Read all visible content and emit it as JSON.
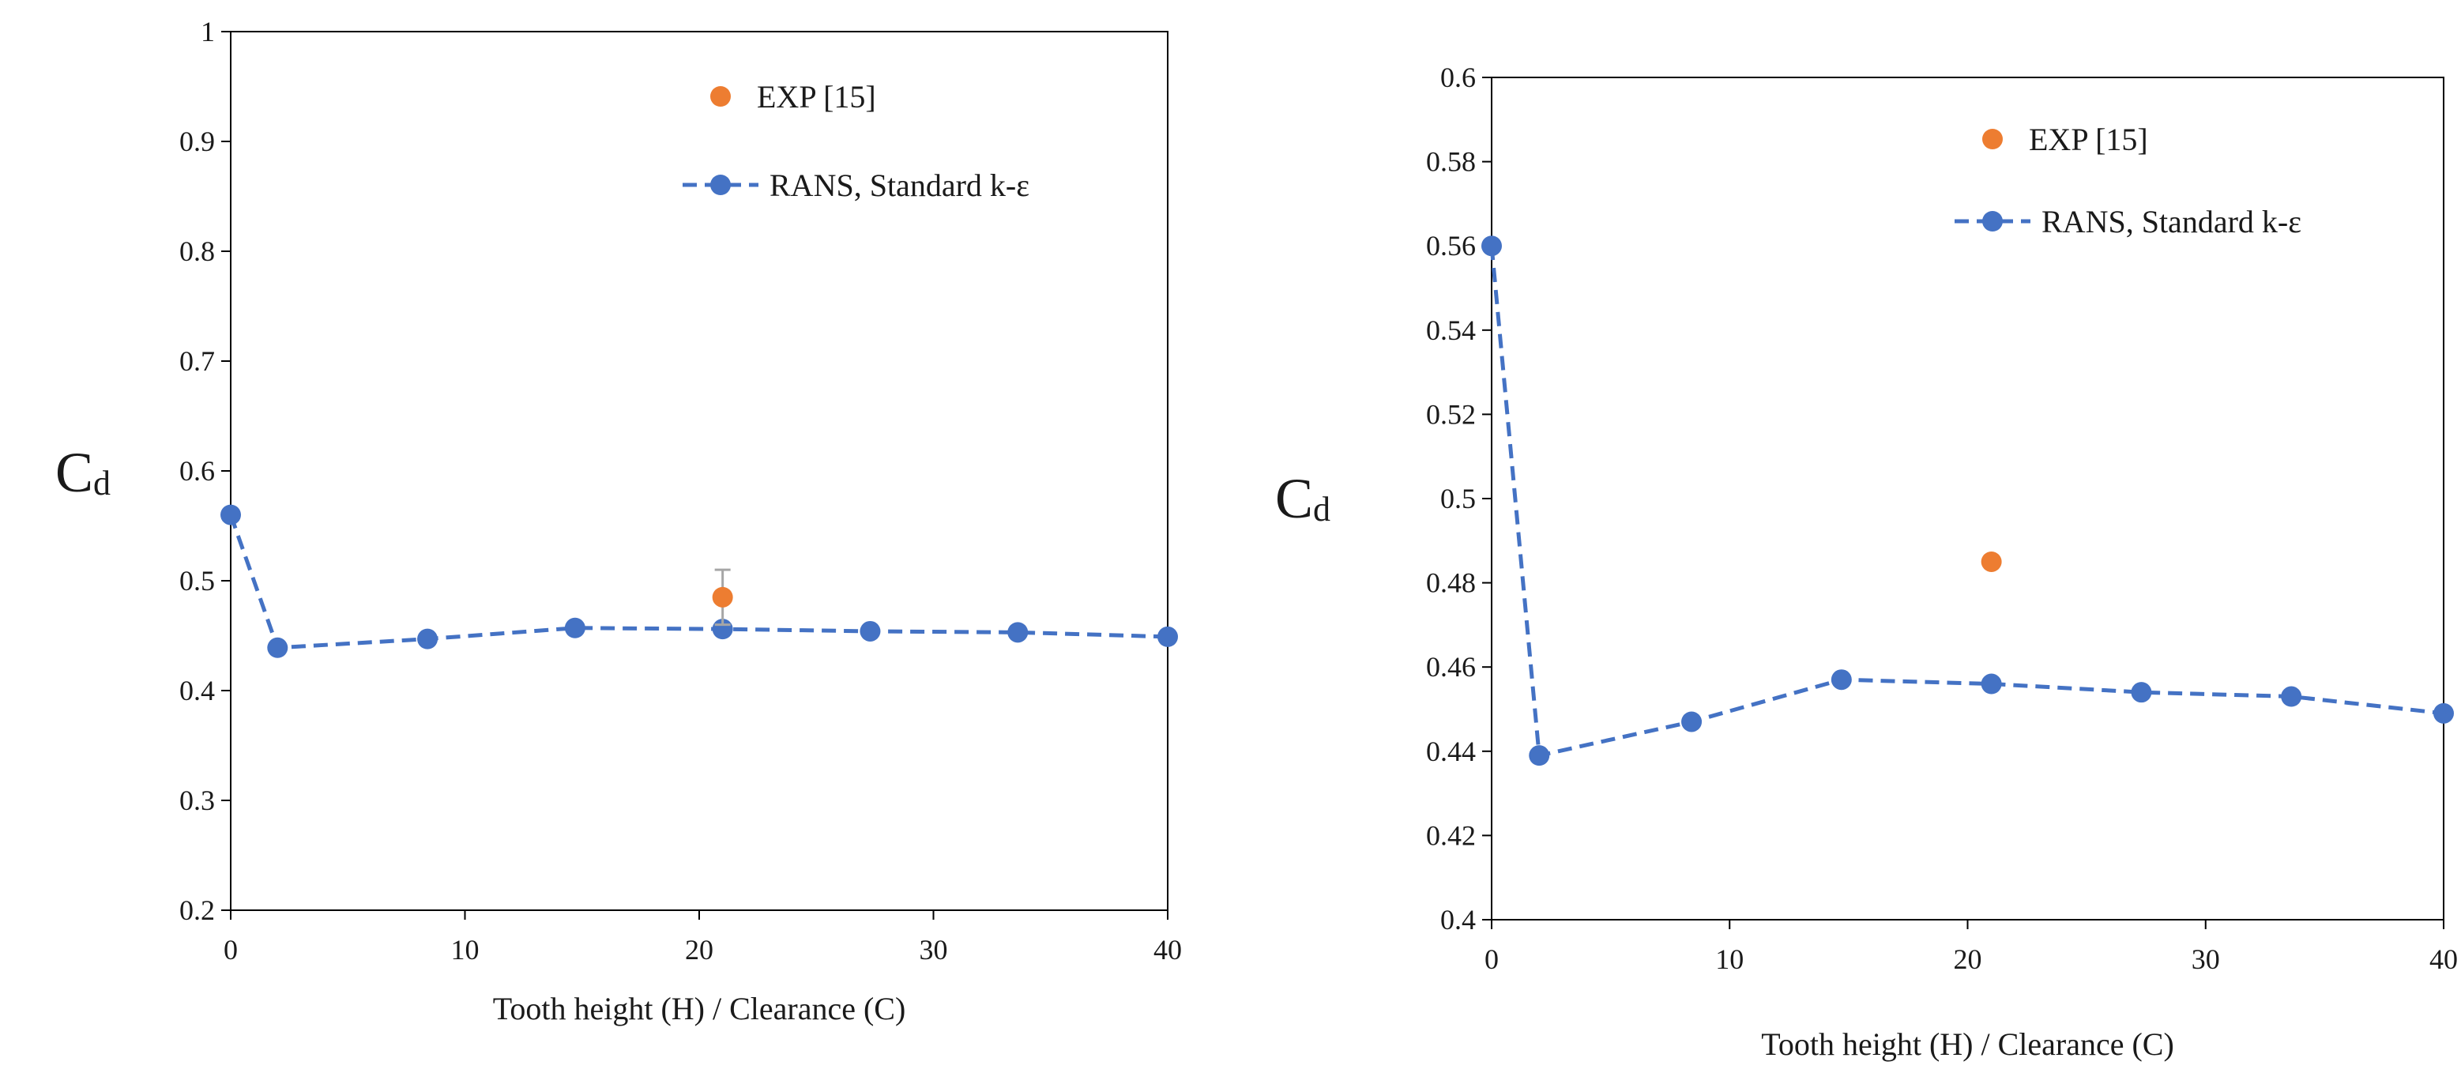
{
  "colors": {
    "rans": "#4472C4",
    "exp": "#ED7D31",
    "error_bar": "#A6A6A6",
    "axis": "#000000"
  },
  "chart_data": [
    {
      "type": "line",
      "xlabel": "Tooth height (H) / Clearance (C)",
      "ylabel": {
        "main": "C",
        "sub": "d"
      },
      "xlim": [
        0,
        40
      ],
      "ylim": [
        0.2,
        1.0
      ],
      "xticks": [
        "0",
        "10",
        "20",
        "30",
        "40"
      ],
      "yticks": [
        "0.2",
        "0.3",
        "0.4",
        "0.5",
        "0.6",
        "0.7",
        "0.8",
        "0.9",
        "1"
      ],
      "grid": false,
      "legend_position": "top-right",
      "series": [
        {
          "name": "EXP [15]",
          "style": "markers",
          "x": [
            21
          ],
          "y": [
            0.485
          ],
          "error": [
            0.025
          ]
        },
        {
          "name": "RANS, Standard k-ε",
          "style": "dashed-line-markers",
          "x": [
            0,
            2,
            8.4,
            14.7,
            21,
            27.3,
            33.6,
            40
          ],
          "y": [
            0.56,
            0.439,
            0.447,
            0.457,
            0.456,
            0.454,
            0.453,
            0.449
          ]
        }
      ]
    },
    {
      "type": "line",
      "xlabel": "Tooth height (H) / Clearance (C)",
      "ylabel": {
        "main": "C",
        "sub": "d"
      },
      "xlim": [
        0,
        40
      ],
      "ylim": [
        0.4,
        0.6
      ],
      "xticks": [
        "0",
        "10",
        "20",
        "30",
        "40"
      ],
      "yticks": [
        "0.4",
        "0.42",
        "0.44",
        "0.46",
        "0.48",
        "0.5",
        "0.52",
        "0.54",
        "0.56",
        "0.58",
        "0.6"
      ],
      "grid": false,
      "legend_position": "top-right",
      "series": [
        {
          "name": "EXP [15]",
          "style": "markers",
          "x": [
            21
          ],
          "y": [
            0.485
          ]
        },
        {
          "name": "RANS, Standard k-ε",
          "style": "dashed-line-markers",
          "x": [
            0,
            2,
            8.4,
            14.7,
            21,
            27.3,
            33.6,
            40
          ],
          "y": [
            0.56,
            0.439,
            0.447,
            0.457,
            0.456,
            0.454,
            0.453,
            0.449
          ]
        }
      ]
    }
  ]
}
